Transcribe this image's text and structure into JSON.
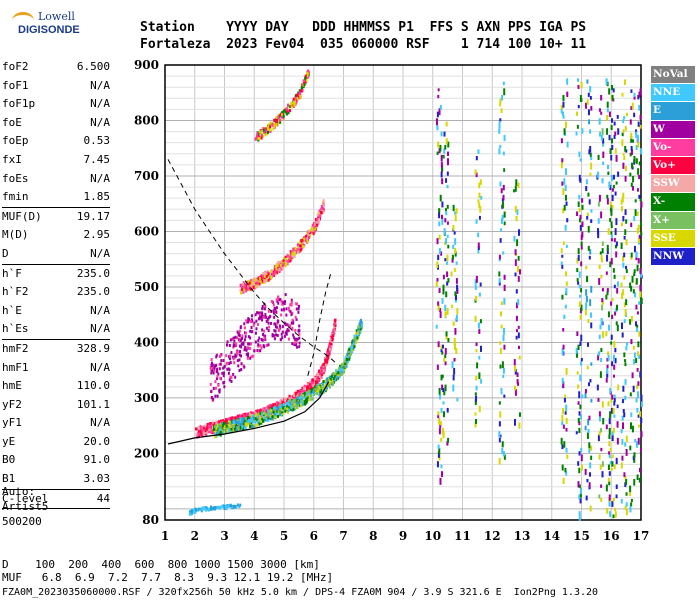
{
  "logo": {
    "line1": "Lowell",
    "line2": "DIGISONDE"
  },
  "header": {
    "labels_line": "Station    YYYY DAY   DDD HHMMSS P1  FFS S AXN PPS IGA PS",
    "values_line": "Fortaleza  2023 Fev04  035 060000 RSF    1 714 100 10+ 11"
  },
  "params": {
    "group1": [
      {
        "name": "foF2",
        "value": "6.500"
      },
      {
        "name": "foF1",
        "value": "N/A"
      },
      {
        "name": "foF1p",
        "value": "N/A"
      },
      {
        "name": "foE",
        "value": "N/A"
      },
      {
        "name": "foEp",
        "value": "0.53"
      },
      {
        "name": "fxI",
        "value": "7.45"
      },
      {
        "name": "foEs",
        "value": "N/A"
      },
      {
        "name": "fmin",
        "value": "1.85"
      }
    ],
    "group2": [
      {
        "name": "MUF(D)",
        "value": "19.17"
      },
      {
        "name": "M(D)",
        "value": "2.95"
      },
      {
        "name": "D",
        "value": "N/A"
      }
    ],
    "group3": [
      {
        "name": "h`F",
        "value": "235.0"
      },
      {
        "name": "h`F2",
        "value": "235.0"
      },
      {
        "name": "h`E",
        "value": "N/A"
      },
      {
        "name": "h`Es",
        "value": "N/A"
      }
    ],
    "group4": [
      {
        "name": "hmF2",
        "value": "328.9"
      },
      {
        "name": "hmF1",
        "value": "N/A"
      },
      {
        "name": "hmE",
        "value": "110.0"
      },
      {
        "name": "yF2",
        "value": "101.1"
      },
      {
        "name": "yF1",
        "value": "N/A"
      },
      {
        "name": "yE",
        "value": "20.0"
      },
      {
        "name": "B0",
        "value": "91.0"
      },
      {
        "name": "B1",
        "value": "3.03"
      }
    ],
    "group5": [
      {
        "name": "C-level",
        "value": "44"
      }
    ]
  },
  "auto": {
    "line1": "Auto:",
    "line2": "Artist5",
    "line3": "500200"
  },
  "bottom": {
    "d_line": "D    100  200  400  600  800 1000 1500 3000 [km]",
    "muf_line": "MUF   6.8  6.9  7.2  7.7  8.3  9.3 12.1 19.2 [MHz]",
    "info_line": "FZA0M_2023035060000.RSF / 320fx256h 50 kHz 5.0 km / DPS-4 FZA0M 904 / 3.9 S 321.6 E  Ion2Png 1.3.20"
  },
  "legend": [
    {
      "label": "NoVal",
      "color": "#808080"
    },
    {
      "label": "NNE",
      "color": "#40c8ff"
    },
    {
      "label": "E",
      "color": "#2a9fd8"
    },
    {
      "label": "W",
      "color": "#a000a0"
    },
    {
      "label": "Vo-",
      "color": "#ff3ca0"
    },
    {
      "label": "Vo+",
      "color": "#ff0040"
    },
    {
      "label": "SSW",
      "color": "#f4a8a8"
    },
    {
      "label": "X-",
      "color": "#008000"
    },
    {
      "label": "X+",
      "color": "#78c060"
    },
    {
      "label": "SSE",
      "color": "#d8d800"
    },
    {
      "label": "NNW",
      "color": "#2020c8"
    }
  ],
  "chart_data": {
    "type": "scatter",
    "title": "",
    "xlabel": "",
    "ylabel": "",
    "xlim": [
      1,
      17
    ],
    "ylim": [
      80,
      900
    ],
    "x_ticks": [
      "1",
      "2",
      "3",
      "4",
      "5",
      "6",
      "7",
      "8",
      "9",
      "10",
      "11",
      "12",
      "13",
      "14",
      "15",
      "16",
      "17"
    ],
    "y_ticks": [
      "80",
      "200",
      "300",
      "400",
      "500",
      "600",
      "700",
      "800",
      "900"
    ],
    "grid": true,
    "legend_position": "right",
    "traces": {
      "f2_o_trace": [
        [
          2.0,
          240
        ],
        [
          2.5,
          248
        ],
        [
          3.0,
          255
        ],
        [
          3.5,
          262
        ],
        [
          4.0,
          270
        ],
        [
          4.5,
          280
        ],
        [
          5.0,
          292
        ],
        [
          5.5,
          308
        ],
        [
          6.0,
          330
        ],
        [
          6.3,
          355
        ],
        [
          6.5,
          390
        ],
        [
          6.7,
          440
        ]
      ],
      "f2_x_trace": [
        [
          2.6,
          242
        ],
        [
          3.0,
          248
        ],
        [
          3.5,
          255
        ],
        [
          4.0,
          262
        ],
        [
          4.5,
          272
        ],
        [
          5.0,
          284
        ],
        [
          5.5,
          296
        ],
        [
          6.0,
          312
        ],
        [
          6.5,
          330
        ],
        [
          7.0,
          360
        ],
        [
          7.3,
          400
        ],
        [
          7.6,
          440
        ]
      ],
      "second_hop": [
        [
          3.5,
          500
        ],
        [
          4.0,
          510
        ],
        [
          4.5,
          525
        ],
        [
          5.0,
          548
        ],
        [
          5.5,
          575
        ],
        [
          6.0,
          610
        ],
        [
          6.3,
          650
        ]
      ],
      "third_hop": [
        [
          4.0,
          770
        ],
        [
          4.5,
          790
        ],
        [
          5.0,
          815
        ],
        [
          5.5,
          850
        ],
        [
          5.8,
          890
        ]
      ],
      "es_low": [
        [
          1.8,
          95
        ],
        [
          2.0,
          100
        ],
        [
          2.5,
          104
        ],
        [
          3.0,
          106
        ],
        [
          3.5,
          108
        ]
      ],
      "spread_w": [
        [
          2.5,
          330
        ],
        [
          3.0,
          360
        ],
        [
          3.5,
          390
        ],
        [
          4.0,
          420
        ],
        [
          4.5,
          440
        ],
        [
          5.0,
          450
        ],
        [
          5.5,
          430
        ]
      ]
    },
    "solid_profile": [
      [
        1.1,
        217
      ],
      [
        2.0,
        228
      ],
      [
        3.0,
        235
      ],
      [
        4.0,
        245
      ],
      [
        5.0,
        258
      ],
      [
        5.7,
        275
      ],
      [
        6.2,
        300
      ],
      [
        6.5,
        329
      ]
    ],
    "dashed_muf": [
      [
        1.1,
        730
      ],
      [
        1.5,
        690
      ],
      [
        2.0,
        640
      ],
      [
        2.5,
        600
      ],
      [
        3.0,
        560
      ],
      [
        3.5,
        525
      ],
      [
        4.0,
        490
      ],
      [
        4.5,
        460
      ],
      [
        5.0,
        435
      ],
      [
        5.5,
        412
      ],
      [
        6.0,
        392
      ],
      [
        6.5,
        375
      ],
      [
        6.8,
        360
      ]
    ],
    "dashed_upper": [
      [
        5.8,
        340
      ],
      [
        6.0,
        380
      ],
      [
        6.2,
        440
      ],
      [
        6.4,
        490
      ],
      [
        6.6,
        530
      ]
    ],
    "vertical_bands": [
      {
        "f": 10.2,
        "h0": 150,
        "h1": 880,
        "color": "#a000a0"
      },
      {
        "f": 10.4,
        "h0": 180,
        "h1": 820,
        "color": "#008000"
      },
      {
        "f": 10.7,
        "h0": 300,
        "h1": 650,
        "color": "#d8d800"
      },
      {
        "f": 11.5,
        "h0": 220,
        "h1": 760,
        "color": "#d8d800"
      },
      {
        "f": 12.3,
        "h0": 180,
        "h1": 880,
        "color": "#40c8ff"
      },
      {
        "f": 12.8,
        "h0": 250,
        "h1": 700,
        "color": "#a000a0"
      },
      {
        "f": 14.4,
        "h0": 150,
        "h1": 880,
        "color": "#40c8ff"
      },
      {
        "f": 14.9,
        "h0": 90,
        "h1": 880,
        "color": "#008000"
      },
      {
        "f": 15.2,
        "h0": 100,
        "h1": 880,
        "color": "#2a9fd8"
      },
      {
        "f": 15.6,
        "h0": 120,
        "h1": 860,
        "color": "#78c060"
      },
      {
        "f": 15.9,
        "h0": 90,
        "h1": 880,
        "color": "#008000"
      },
      {
        "f": 16.1,
        "h0": 90,
        "h1": 880,
        "color": "#2020c8"
      },
      {
        "f": 16.4,
        "h0": 100,
        "h1": 880,
        "color": "#d8d800"
      },
      {
        "f": 16.7,
        "h0": 100,
        "h1": 860,
        "color": "#008000"
      },
      {
        "f": 16.9,
        "h0": 120,
        "h1": 860,
        "color": "#a000a0"
      }
    ]
  }
}
